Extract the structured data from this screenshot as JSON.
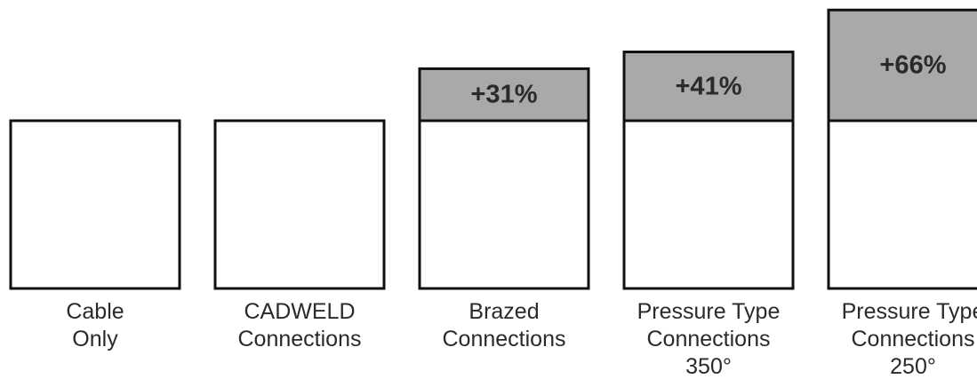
{
  "chart_data": {
    "type": "bar",
    "categories": [
      [
        "Cable",
        "Only"
      ],
      [
        "CADWELD",
        "Connections"
      ],
      [
        "Brazed",
        "Connections"
      ],
      [
        "Pressure Type",
        "Connections",
        "350°"
      ],
      [
        "Pressure Type",
        "Connections",
        "250°"
      ]
    ],
    "increase_percent": [
      0,
      0,
      31,
      41,
      66
    ],
    "data_labels": [
      "",
      "",
      "+31%",
      "+41%",
      "+66%"
    ],
    "colors": {
      "base_fill": "#ffffff",
      "increase_fill": "#a9a9a9",
      "outline": "#111111",
      "text": "#2a2a2a"
    },
    "grid": false,
    "legend": "none"
  }
}
